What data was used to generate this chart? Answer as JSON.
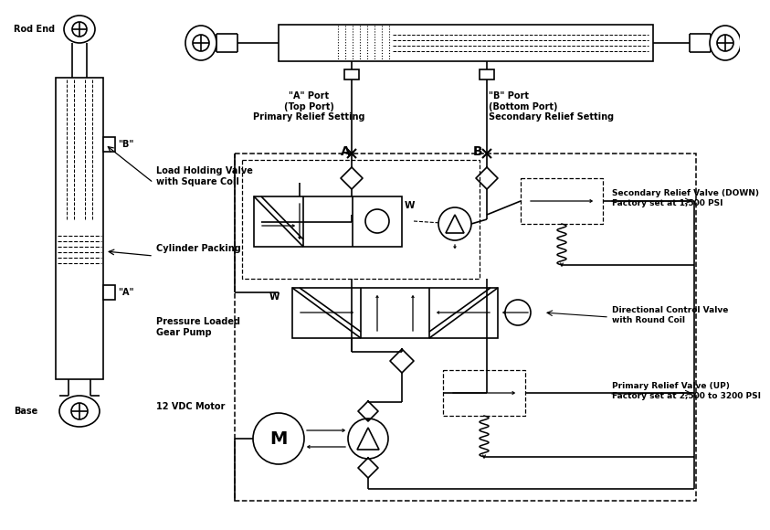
{
  "bg": "#ffffff",
  "lc": "#000000",
  "lw": 1.2,
  "fs": 7.0,
  "labels": {
    "rod_end": "Rod End",
    "base": "Base",
    "port_b_cyl": "\"B\"",
    "port_a_cyl": "\"A\"",
    "port_A_desc": "\"A\" Port\n(Top Port)\nPrimary Relief Setting",
    "port_B_desc": "\"B\" Port\n(Bottom Port)\nSecondary Relief Setting",
    "A_letter": "A",
    "B_letter": "B",
    "load_holding": "Load Holding Valve\nwith Square Coil",
    "cylinder_packing": "Cylinder Packing",
    "pressure_loaded": "Pressure Loaded\nGear Pump",
    "motor_12vdc": "12 VDC Motor",
    "motor_M": "M",
    "W": "W",
    "secondary_relief": "Secondary Relief Valve (DOWN)\nFactory set at 1,500 PSI",
    "directional_control": "Directional Control Valve\nwith Round Coil",
    "primary_relief": "Primary Relief Valve (UP)\nFactory set at 2,500 to 3200 PSI"
  }
}
